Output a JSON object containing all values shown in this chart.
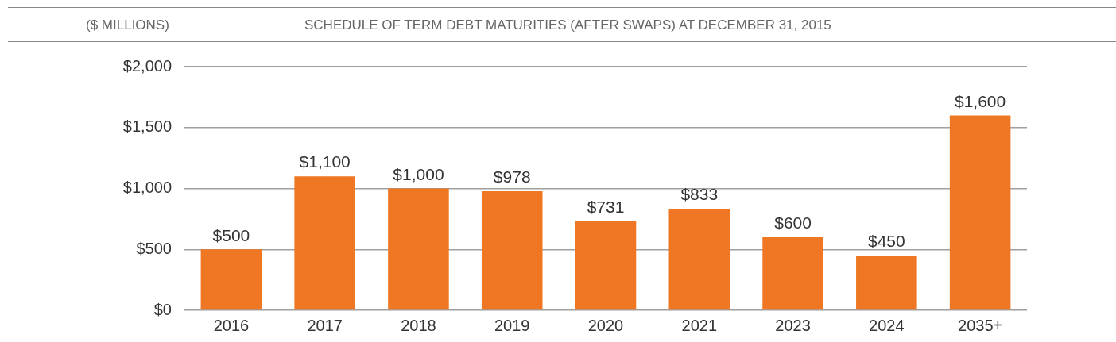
{
  "chart_data": {
    "type": "bar",
    "title": "SCHEDULE OF TERM DEBT MATURITIES (AFTER SWAPS) AT DECEMBER 31, 2015",
    "ylabel": "($ MILLIONS)",
    "categories": [
      "2016",
      "2017",
      "2018",
      "2019",
      "2020",
      "2021",
      "2023",
      "2024",
      "2035+"
    ],
    "values": [
      500,
      1100,
      1000,
      978,
      731,
      833,
      600,
      450,
      1600
    ],
    "value_labels": [
      "$500",
      "$1,100",
      "$1,000",
      "$978",
      "$731",
      "$833",
      "$600",
      "$450",
      "$1,600"
    ],
    "color": "#ef7622",
    "ylim": [
      0,
      2000
    ],
    "yticks": [
      {
        "value": 0,
        "label": "$0"
      },
      {
        "value": 500,
        "label": "$500"
      },
      {
        "value": 1000,
        "label": "$1,000"
      },
      {
        "value": 1500,
        "label": "$1,500"
      },
      {
        "value": 2000,
        "label": "$2,000"
      }
    ],
    "grid": "y",
    "legend": false
  }
}
